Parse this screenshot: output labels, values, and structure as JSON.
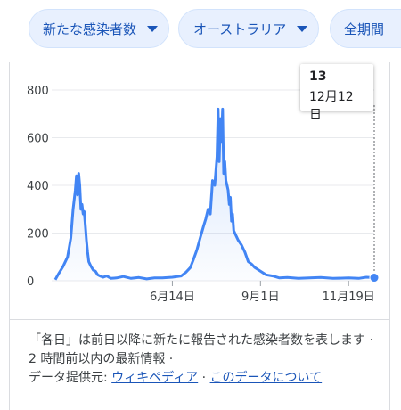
{
  "filters": {
    "metric": "新たな感染者数",
    "region": "オーストラリア",
    "period": "全期間"
  },
  "tooltip": {
    "value": "13",
    "date": "12月12日"
  },
  "footer": {
    "note": "「各日」は前日以降に新たに報告された感染者数を表します · 2 時間前以内の最新情報 ·",
    "source_label": "データ提供元:",
    "source_link": "ウィキペディア",
    "about_link": "このデータについて",
    "dot": "·"
  },
  "colors": {
    "line": "#4285f4",
    "accent": "#1a55b8"
  },
  "chart_data": {
    "type": "area",
    "title": "",
    "xlabel": "",
    "ylabel": "",
    "ylim": [
      0,
      800
    ],
    "y_ticks": [
      "0",
      "200",
      "400",
      "600",
      "800"
    ],
    "x_ticks": [
      "6月14日",
      "9月1日",
      "11月19日"
    ],
    "grid": true,
    "highlight": {
      "date": "12月12日",
      "value": 13
    },
    "series": [
      {
        "x": [
          "3月1日",
          "3月4日",
          "3月8日",
          "3月12日",
          "3月15日",
          "3月17日",
          "3月19日",
          "3月20日",
          "3月21日",
          "3月22日",
          "3月23日",
          "3月24日",
          "3月25日",
          "3月26日",
          "3月27日",
          "3月28日",
          "3月29日",
          "3月30日",
          "3月31日",
          "4月2日",
          "4月4日",
          "4月6日",
          "4月8日",
          "4月10日",
          "4月13日",
          "4月16日",
          "4月20日",
          "4月25日",
          "5月1日",
          "5月8日",
          "5月15日",
          "5月22日",
          "5月29日",
          "6月5日",
          "6月14日",
          "6月22日",
          "6月26日",
          "6月30日",
          "7月3日",
          "7月6日",
          "7月9日",
          "7月12日",
          "7月14日",
          "7月16日",
          "7月18日",
          "7月20日",
          "7月22日",
          "7月24日",
          "7月25日",
          "7月26日",
          "7月27日",
          "7月28日",
          "7月29日",
          "7月30日",
          "7月31日",
          "8月1日",
          "8月2日",
          "8月3日",
          "8月4日",
          "8月5日",
          "8月6日",
          "8月7日",
          "8月8日",
          "8月10日",
          "8月12日",
          "8月15日",
          "8月18日",
          "8月21日",
          "8月24日",
          "8月27日",
          "9月1日",
          "9月6日",
          "9月12日",
          "9月18日",
          "9月25日",
          "10月5日",
          "10月15日",
          "10月25日",
          "11月5日",
          "11月19日",
          "11月28日",
          "12月5日",
          "12月12日"
        ],
        "values": [
          5,
          30,
          60,
          100,
          180,
          300,
          380,
          440,
          360,
          450,
          400,
          300,
          320,
          280,
          290,
          230,
          170,
          120,
          80,
          60,
          45,
          40,
          25,
          20,
          15,
          20,
          10,
          12,
          18,
          10,
          14,
          8,
          12,
          12,
          15,
          20,
          35,
          55,
          90,
          130,
          180,
          230,
          260,
          300,
          280,
          420,
          400,
          520,
          720,
          500,
          680,
          580,
          720,
          450,
          500,
          420,
          400,
          380,
          320,
          350,
          250,
          280,
          210,
          190,
          170,
          150,
          120,
          80,
          70,
          55,
          40,
          25,
          20,
          12,
          14,
          10,
          12,
          14,
          10,
          12,
          10,
          15,
          13
        ]
      }
    ]
  }
}
